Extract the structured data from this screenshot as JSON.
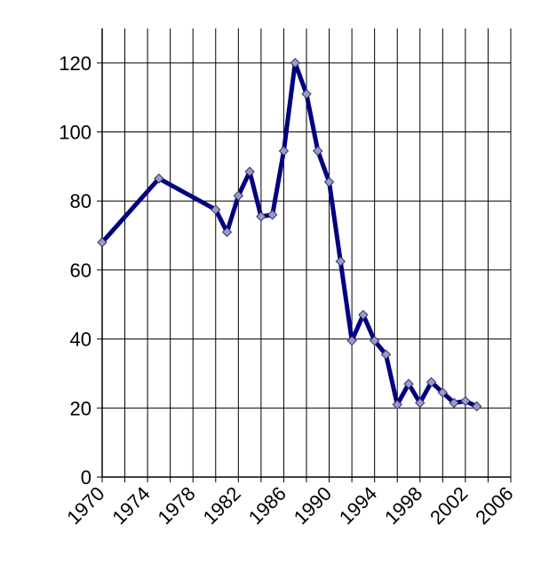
{
  "chart_data": {
    "type": "line",
    "x": [
      1970,
      1975,
      1980,
      1981,
      1982,
      1983,
      1984,
      1985,
      1986,
      1987,
      1988,
      1989,
      1990,
      1991,
      1992,
      1993,
      1994,
      1995,
      1996,
      1997,
      1998,
      1999,
      2000,
      2001,
      2002,
      2003
    ],
    "series": [
      {
        "color": "#000080",
        "marker_color": "#9a9ac8",
        "values": [
          68,
          86.5,
          77.5,
          71,
          81.5,
          88.5,
          75.5,
          76,
          94.5,
          120,
          111,
          94.5,
          85.5,
          62.5,
          39.5,
          47,
          39.5,
          35.5,
          21,
          27,
          21.5,
          27.5,
          24.5,
          21.5,
          22,
          20.5
        ]
      }
    ],
    "xlim": [
      1970,
      2006
    ],
    "xticks": [
      1970,
      1974,
      1978,
      1982,
      1986,
      1990,
      1994,
      1998,
      2002,
      2006
    ],
    "xgrid": [
      1970,
      1972,
      1974,
      1976,
      1978,
      1980,
      1982,
      1984,
      1986,
      1988,
      1990,
      1992,
      1994,
      1996,
      1998,
      2000,
      2002,
      2004,
      2006
    ],
    "ylim": [
      0,
      130
    ],
    "yticks": [
      0,
      20,
      40,
      60,
      80,
      100,
      120
    ],
    "grid": true
  }
}
